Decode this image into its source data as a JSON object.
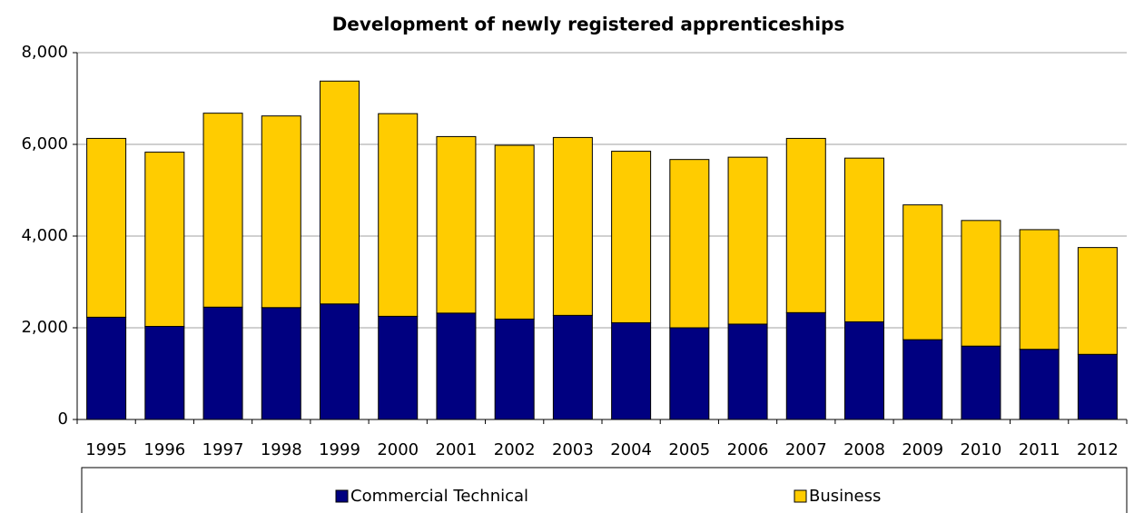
{
  "chart_data": {
    "type": "stacked_bar",
    "title": "Development of newly registered apprenticeships",
    "categories": [
      "1995",
      "1996",
      "1997",
      "1998",
      "1999",
      "2000",
      "2001",
      "2002",
      "2003",
      "2004",
      "2005",
      "2006",
      "2007",
      "2008",
      "2009",
      "2010",
      "2011",
      "2012"
    ],
    "series": [
      {
        "name": "Commercial Technical",
        "color": "#000080",
        "values": [
          2230,
          2030,
          2450,
          2440,
          2520,
          2250,
          2320,
          2190,
          2270,
          2110,
          2000,
          2080,
          2330,
          2130,
          1740,
          1600,
          1530,
          1420
        ]
      },
      {
        "name": "Business",
        "color": "#ffcc00",
        "values": [
          3900,
          3800,
          4230,
          4180,
          4860,
          4420,
          3850,
          3790,
          3880,
          3740,
          3670,
          3640,
          3800,
          3570,
          2940,
          2740,
          2610,
          2330
        ]
      }
    ],
    "ylim": [
      0,
      8000
    ],
    "yticks": [
      0,
      {
        "value": 2000,
        "label": "2,000"
      },
      {
        "value": 4000,
        "label": "4,000"
      },
      {
        "value": 6000,
        "label": "6,000"
      },
      {
        "value": 8000,
        "label": "8,000"
      }
    ],
    "grid": true,
    "legend": "bottom"
  }
}
